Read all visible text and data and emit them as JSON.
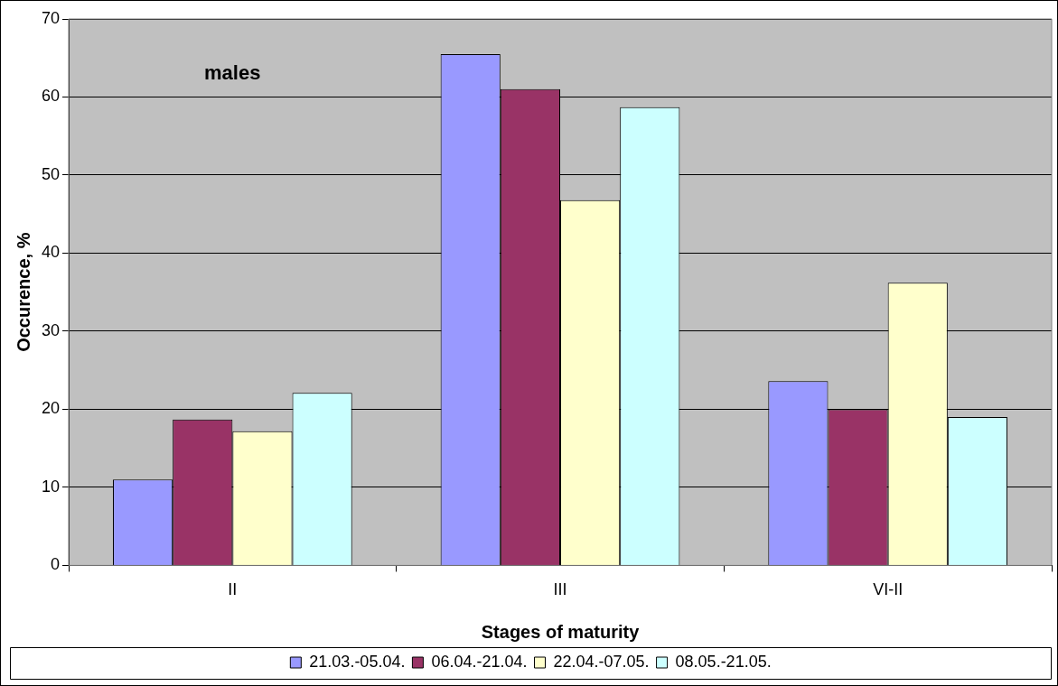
{
  "chart_data": {
    "type": "bar",
    "xlabel": "Stages of maturity",
    "ylabel": "Occurence, %",
    "annotations": [
      "males"
    ],
    "categories": [
      "II",
      "III",
      "VI-II"
    ],
    "series": [
      {
        "name": "21.03.-05.04.",
        "color": "#9999ff",
        "values": [
          11,
          65.5,
          23.6
        ]
      },
      {
        "name": "06.04.-21.04.",
        "color": "#993366",
        "values": [
          18.7,
          61,
          20
        ]
      },
      {
        "name": "22.04.-07.05.",
        "color": "#ffffcc",
        "values": [
          17.2,
          46.8,
          36.2
        ]
      },
      {
        "name": "08.05.-21.05.",
        "color": "#ccffff",
        "values": [
          22.1,
          58.7,
          19
        ]
      }
    ],
    "ylim": [
      0,
      70
    ],
    "yticks": [
      0,
      10,
      20,
      30,
      40,
      50,
      60,
      70
    ],
    "grid": "y",
    "legend": "bottom"
  }
}
